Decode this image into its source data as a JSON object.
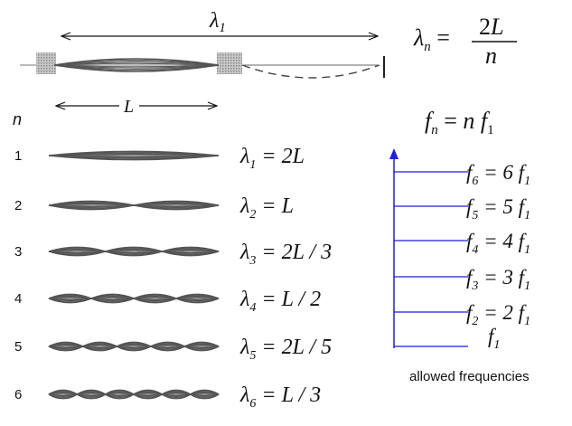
{
  "top": {
    "lambda1_label": "λ1",
    "length_label": "L",
    "formula_lambda": "λn = 2L / n",
    "formula_frequency": "fn = n f1"
  },
  "modes_header": "n",
  "modes": [
    {
      "n": "1",
      "label": "λ1 = 2L"
    },
    {
      "n": "2",
      "label": "λ2 = L"
    },
    {
      "n": "3",
      "label": "λ3 = 2L / 3"
    },
    {
      "n": "4",
      "label": "λ4 = L / 2"
    },
    {
      "n": "5",
      "label": "λ5 = 2L / 5"
    },
    {
      "n": "6",
      "label": "λ6 = L / 3"
    }
  ],
  "frequencies": [
    {
      "label": "f1"
    },
    {
      "label": "f2 = 2 f1"
    },
    {
      "label": "f3 = 3 f1"
    },
    {
      "label": "f4 = 4 f1"
    },
    {
      "label": "f5 = 5 f1"
    },
    {
      "label": "f6 = 6 f1"
    }
  ],
  "frequencies_caption": "allowed frequencies",
  "colors": {
    "ladder": "#1f1fdc",
    "ink": "#111111",
    "string": "#555555"
  }
}
